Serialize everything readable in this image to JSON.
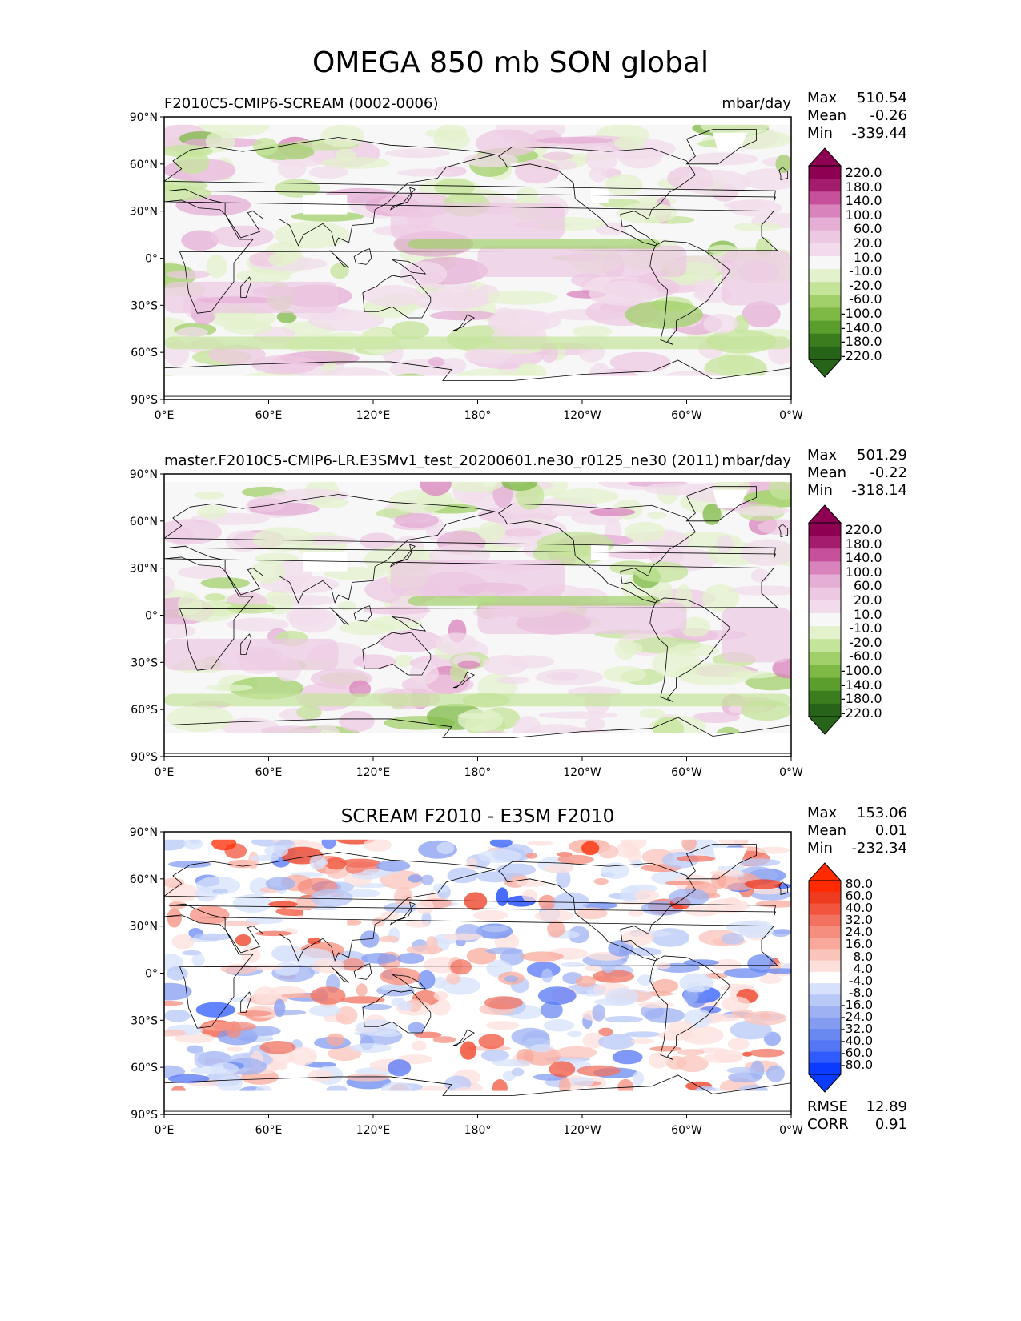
{
  "figure": {
    "title": "OMEGA 850 mb SON global"
  },
  "colors": {
    "model_scale": [
      "#276419",
      "#3b7d1e",
      "#5b9e2e",
      "#7eb945",
      "#a1d06b",
      "#c4e49a",
      "#e3f2cc",
      "#f7f7f7",
      "#f2dceb",
      "#edc8e2",
      "#e4aed5",
      "#d983bd",
      "#c7509d",
      "#a41c6e",
      "#8e0152"
    ],
    "diff_scale": [
      "#0b3bff",
      "#2f5bff",
      "#5577f5",
      "#6a89f0",
      "#849cf0",
      "#9db1f3",
      "#b8c8f7",
      "#d7e1fb",
      "#ffffff",
      "#fde0dc",
      "#fbc4bb",
      "#f8a99c",
      "#f58e7e",
      "#f27160",
      "#f2553d",
      "#ee3a1f",
      "#ff2a00"
    ],
    "ocean_bg": "#f7f7f7",
    "diff_bg": "#ffffff"
  },
  "panels": [
    {
      "title_left": "F2010C5-CMIP6-SCREAM (0002-0006)",
      "title_right": "mbar/day",
      "title_center": "",
      "stats": [
        {
          "label": "Max",
          "value": "510.54"
        },
        {
          "label": "Mean",
          "value": "-0.26"
        },
        {
          "label": "Min",
          "value": "-339.44"
        }
      ],
      "colorbar_labels": [
        "220.0",
        "180.0",
        "140.0",
        "100.0",
        "60.0",
        "20.0",
        "10.0",
        "-10.0",
        "-20.0",
        "-60.0",
        "-100.0",
        "-140.0",
        "-180.0",
        "-220.0"
      ]
    },
    {
      "title_left": "master.F2010C5-CMIP6-LR.E3SMv1_test_20200601.ne30_r0125_ne30 (2011)",
      "title_right": "mbar/day",
      "title_center": "",
      "stats": [
        {
          "label": "Max",
          "value": "501.29"
        },
        {
          "label": "Mean",
          "value": "-0.22"
        },
        {
          "label": "Min",
          "value": "-318.14"
        }
      ],
      "colorbar_labels": [
        "220.0",
        "180.0",
        "140.0",
        "100.0",
        "60.0",
        "20.0",
        "10.0",
        "-10.0",
        "-20.0",
        "-60.0",
        "-100.0",
        "-140.0",
        "-180.0",
        "-220.0"
      ]
    },
    {
      "title_left": "",
      "title_right": "",
      "title_center": "SCREAM F2010 - E3SM F2010",
      "stats": [
        {
          "label": "Max",
          "value": "153.06"
        },
        {
          "label": "Mean",
          "value": "0.01"
        },
        {
          "label": "Min",
          "value": "-232.34"
        }
      ],
      "colorbar_labels": [
        "80.0",
        "60.0",
        "40.0",
        "32.0",
        "24.0",
        "16.0",
        "8.0",
        "4.0",
        "-4.0",
        "-8.0",
        "-16.0",
        "-24.0",
        "-32.0",
        "-40.0",
        "-60.0",
        "-80.0"
      ],
      "bottom_stats": [
        {
          "label": "RMSE",
          "value": "12.89"
        },
        {
          "label": "CORR",
          "value": "0.91"
        }
      ]
    }
  ],
  "axes": {
    "y_ticks": [
      "90°N",
      "60°N",
      "30°N",
      "0°",
      "30°S",
      "60°S",
      "90°S"
    ],
    "x_ticks": [
      "0°E",
      "60°E",
      "120°E",
      "180°",
      "120°W",
      "60°W",
      "0°W"
    ]
  },
  "chart_data": [
    {
      "type": "heatmap",
      "title": "F2010C5-CMIP6-SCREAM (0002-0006)",
      "units": "mbar/day",
      "xlim": [
        0,
        360
      ],
      "ylim": [
        -90,
        90
      ],
      "x_ticks": [
        "0°E",
        "60°E",
        "120°E",
        "180°",
        "120°W",
        "60°W",
        "0°W"
      ],
      "y_ticks": [
        "90°N",
        "60°N",
        "30°N",
        "0°",
        "30°S",
        "60°S",
        "90°S"
      ],
      "levels": [
        -220,
        -180,
        -140,
        -100,
        -60,
        -20,
        -10,
        10,
        20,
        60,
        100,
        140,
        180,
        220
      ],
      "stats": {
        "max": 510.54,
        "mean": -0.26,
        "min": -339.44
      }
    },
    {
      "type": "heatmap",
      "title": "master.F2010C5-CMIP6-LR.E3SMv1_test_20200601.ne30_r0125_ne30 (2011)",
      "units": "mbar/day",
      "xlim": [
        0,
        360
      ],
      "ylim": [
        -90,
        90
      ],
      "levels": [
        -220,
        -180,
        -140,
        -100,
        -60,
        -20,
        -10,
        10,
        20,
        60,
        100,
        140,
        180,
        220
      ],
      "stats": {
        "max": 501.29,
        "mean": -0.22,
        "min": -318.14
      }
    },
    {
      "type": "heatmap",
      "title": "SCREAM F2010 - E3SM F2010",
      "xlim": [
        0,
        360
      ],
      "ylim": [
        -90,
        90
      ],
      "levels": [
        -80,
        -60,
        -40,
        -32,
        -24,
        -16,
        -8,
        -4,
        4,
        8,
        16,
        24,
        32,
        40,
        60,
        80
      ],
      "stats": {
        "max": 153.06,
        "mean": 0.01,
        "min": -232.34,
        "rmse": 12.89,
        "corr": 0.91
      }
    }
  ]
}
